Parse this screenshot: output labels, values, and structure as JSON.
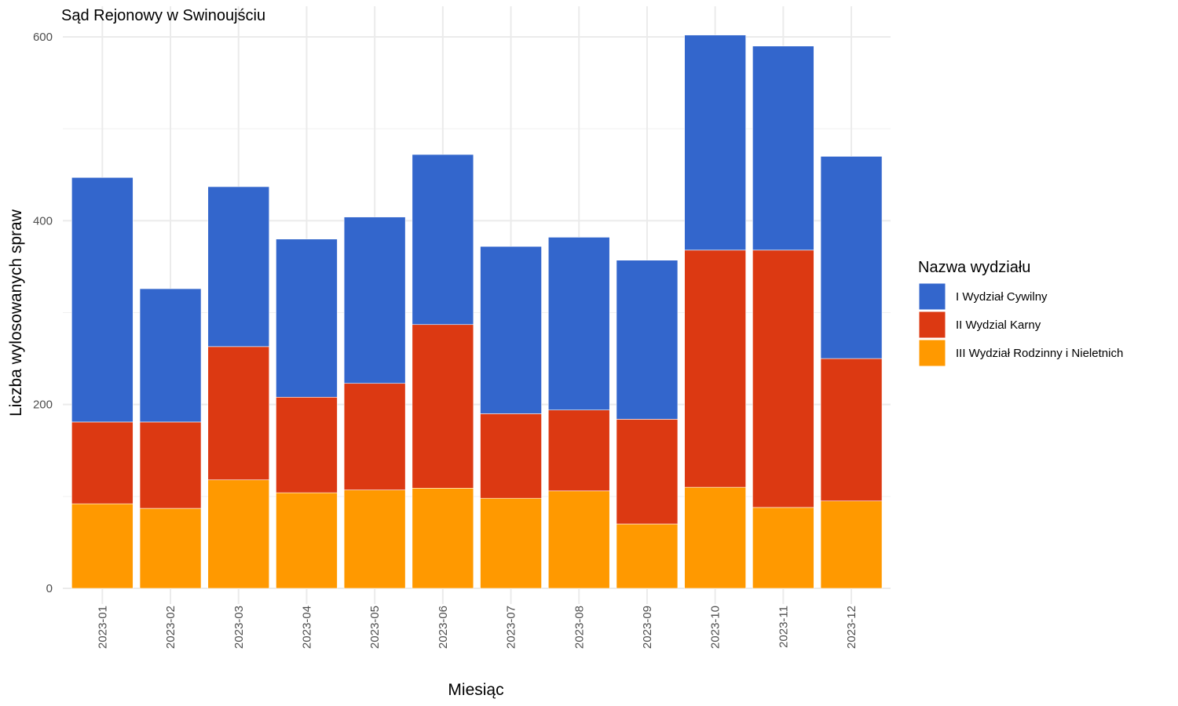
{
  "chart_data": {
    "type": "bar",
    "stacked": true,
    "title": "Sąd Rejonowy w Swinoujściu",
    "xlabel": "Miesiąc",
    "ylabel": "Liczba wylosowanych spraw",
    "ylim": [
      0,
      600
    ],
    "y_ticks": [
      "0",
      "200",
      "400",
      "600"
    ],
    "grid": true,
    "legend_position": "right",
    "legend_title": "Nazwa wydziału",
    "categories": [
      "2023-01",
      "2023-02",
      "2023-03",
      "2023-04",
      "2023-05",
      "2023-06",
      "2023-07",
      "2023-08",
      "2023-09",
      "2023-10",
      "2023-11",
      "2023-12"
    ],
    "series": [
      {
        "name": "I Wydział Cywilny",
        "color": "#3366cc",
        "values": [
          266,
          145,
          174,
          172,
          181,
          185,
          182,
          188,
          173,
          234,
          222,
          220
        ]
      },
      {
        "name": "II Wydzial Karny",
        "color": "#dc3912",
        "values": [
          89,
          94,
          145,
          104,
          116,
          178,
          92,
          88,
          114,
          258,
          280,
          155
        ]
      },
      {
        "name": "III Wydział Rodzinny i Nieletnich",
        "color": "#ff9900",
        "values": [
          92,
          87,
          118,
          104,
          107,
          109,
          98,
          106,
          70,
          110,
          88,
          95
        ]
      }
    ]
  }
}
